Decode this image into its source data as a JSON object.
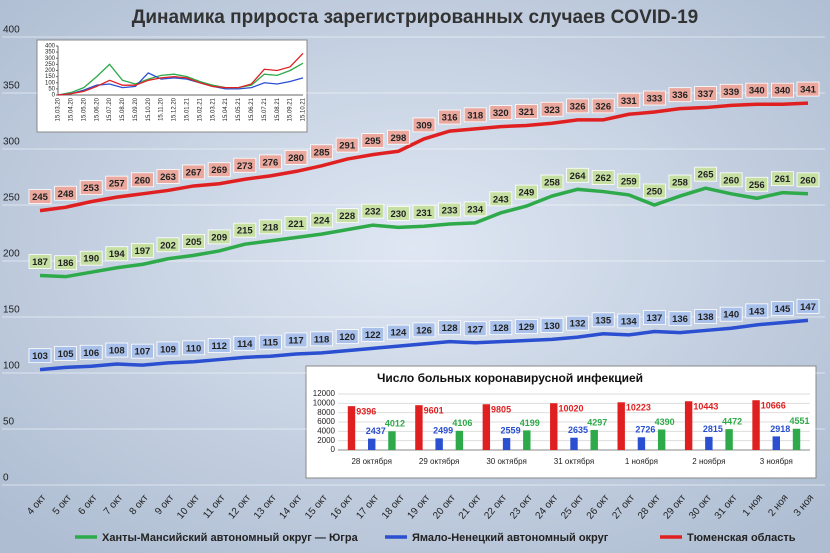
{
  "chart_data": [
    {
      "type": "line",
      "title": "Динамика прироста зарегистрированных случаев COVID-19",
      "categories": [
        "4 окт",
        "5 окт",
        "6 окт",
        "7 окт",
        "8 окт",
        "9 окт",
        "10 окт",
        "11 окт",
        "12 окт",
        "13 окт",
        "14 окт",
        "15 окт",
        "16 окт",
        "17 окт",
        "18 окт",
        "19 окт",
        "20 окт",
        "21 окт",
        "22 окт",
        "23 окт",
        "24 окт",
        "25 окт",
        "26 окт",
        "27 окт",
        "28 окт",
        "29 окт",
        "30 окт",
        "31 окт",
        "1 ноя",
        "2 ноя",
        "3 ноя"
      ],
      "series": [
        {
          "name": "Ханты-Мансийский автономный округ — Югра",
          "color": "#2eaa4a",
          "values": [
            187,
            186,
            190,
            194,
            197,
            202,
            205,
            209,
            215,
            218,
            221,
            224,
            228,
            232,
            230,
            231,
            233,
            234,
            243,
            249,
            258,
            264,
            262,
            259,
            250,
            258,
            265,
            260,
            256,
            261,
            260
          ]
        },
        {
          "name": "Ямало-Ненецкий автономный округ",
          "color": "#2a4fd0",
          "values": [
            103,
            105,
            106,
            108,
            107,
            109,
            110,
            112,
            114,
            115,
            117,
            118,
            120,
            122,
            124,
            126,
            128,
            127,
            128,
            129,
            130,
            132,
            135,
            134,
            137,
            136,
            138,
            140,
            143,
            145,
            147
          ]
        },
        {
          "name": "Тюменская область",
          "color": "#e02020",
          "values": [
            245,
            248,
            253,
            257,
            260,
            263,
            267,
            269,
            273,
            276,
            280,
            285,
            291,
            295,
            298,
            309,
            316,
            318,
            320,
            321,
            323,
            326,
            326,
            331,
            333,
            336,
            337,
            339,
            340,
            340,
            341
          ]
        }
      ],
      "ylim": [
        0,
        400
      ],
      "yticks": [
        0,
        50,
        100,
        150,
        200,
        250,
        300,
        350,
        400
      ],
      "grid": true
    },
    {
      "type": "bar",
      "title": "Число больных коронавирусной инфекцией",
      "categories": [
        "28 октября",
        "29 октября",
        "30 октября",
        "31 октября",
        "1 ноября",
        "2 ноября",
        "3 ноября"
      ],
      "series": [
        {
          "color": "#e02020",
          "values": [
            9396,
            9601,
            9805,
            10020,
            10223,
            10443,
            10666
          ]
        },
        {
          "color": "#2a4fd0",
          "values": [
            2437,
            2499,
            2559,
            2635,
            2726,
            2815,
            2918
          ]
        },
        {
          "color": "#2eaa4a",
          "values": [
            4012,
            4106,
            4199,
            4297,
            4390,
            4472,
            4551
          ]
        }
      ],
      "ylim": [
        0,
        12000
      ],
      "yticks": [
        0,
        2000,
        4000,
        6000,
        8000,
        10000,
        12000
      ],
      "grid": true
    },
    {
      "type": "line",
      "categories": [
        "15.03.20",
        "15.04.20",
        "15.05.20",
        "15.06.20",
        "15.07.20",
        "15.08.20",
        "15.09.20",
        "15.10.20",
        "15.11.20",
        "15.12.20",
        "15.01.21",
        "15.02.21",
        "15.03.21",
        "15.04.21",
        "15.05.21",
        "15.06.21",
        "15.07.21",
        "15.08.21",
        "15.09.21",
        "15.10.21"
      ],
      "series": [
        {
          "color": "#2eaa4a",
          "values": [
            0,
            20,
            60,
            150,
            250,
            120,
            90,
            130,
            160,
            170,
            150,
            110,
            80,
            60,
            60,
            80,
            170,
            160,
            200,
            260
          ]
        },
        {
          "color": "#2a4fd0",
          "values": [
            0,
            10,
            40,
            80,
            90,
            60,
            70,
            180,
            130,
            140,
            130,
            100,
            70,
            50,
            50,
            60,
            100,
            90,
            110,
            140
          ]
        },
        {
          "color": "#e02020",
          "values": [
            0,
            10,
            30,
            70,
            120,
            80,
            80,
            120,
            140,
            150,
            140,
            100,
            70,
            60,
            60,
            90,
            210,
            200,
            230,
            340
          ]
        }
      ],
      "ylim": [
        0,
        400
      ],
      "yticks": [
        0,
        50,
        100,
        150,
        200,
        250,
        300,
        350,
        400
      ],
      "grid": false
    }
  ]
}
